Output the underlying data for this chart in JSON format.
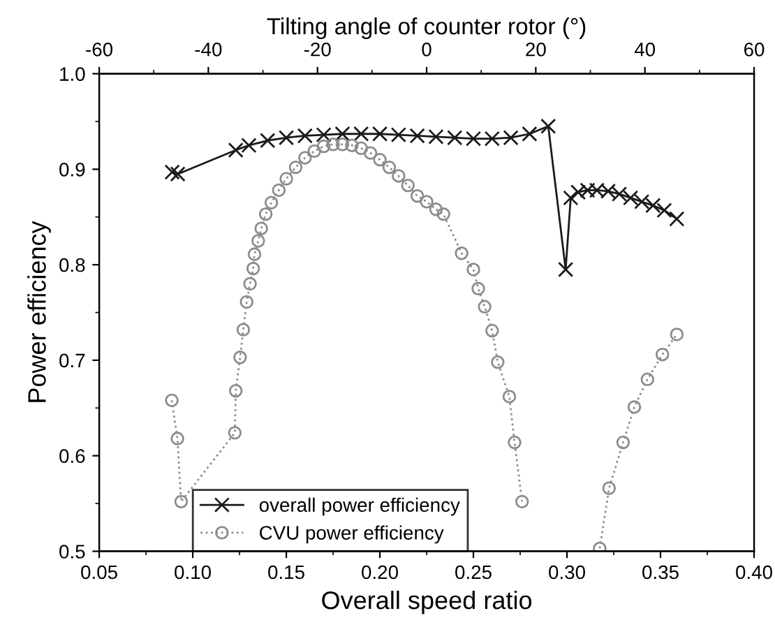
{
  "chart_data": {
    "type": "line",
    "xlabel": "Overall speed ratio",
    "ylabel": "Power efficiency",
    "x2label": "Tilting angle of counter rotor (°)",
    "xlim": [
      0.05,
      0.4
    ],
    "xticks": [
      {
        "value": 0.05,
        "label": "0.05"
      },
      {
        "value": 0.1,
        "label": "0.10"
      },
      {
        "value": 0.15,
        "label": "0.15"
      },
      {
        "value": 0.2,
        "label": "0.20"
      },
      {
        "value": 0.25,
        "label": "0.25"
      },
      {
        "value": 0.3,
        "label": "0.30"
      },
      {
        "value": 0.35,
        "label": "0.35"
      },
      {
        "value": 0.4,
        "label": "0.40"
      }
    ],
    "ylim": [
      0.5,
      1.0
    ],
    "yticks": [
      0.5,
      0.6,
      0.7,
      0.8,
      0.9,
      {
        "value": 1.0,
        "label": "1.0"
      }
    ],
    "x2lim": [
      -60,
      60
    ],
    "x2ticks": [
      -60,
      -40,
      -20,
      0,
      20,
      40,
      60
    ],
    "grid": false,
    "legend": "bottom left",
    "series": [
      {
        "name": "overall power efficiency",
        "color": "#1a1a1a",
        "marker": "cross",
        "line_style": "solid",
        "x": [
          0.089,
          0.092,
          0.123,
          0.13,
          0.14,
          0.15,
          0.16,
          0.17,
          0.18,
          0.19,
          0.2,
          0.21,
          0.22,
          0.23,
          0.24,
          0.25,
          0.26,
          0.27,
          0.28,
          0.29,
          0.2993,
          0.302,
          0.306,
          0.311,
          0.316,
          0.322,
          0.328,
          0.334,
          0.34,
          0.346,
          0.352,
          0.3587
        ],
        "values": [
          0.897,
          0.895,
          0.92,
          0.925,
          0.93,
          0.933,
          0.935,
          0.936,
          0.937,
          0.937,
          0.937,
          0.936,
          0.935,
          0.934,
          0.933,
          0.932,
          0.932,
          0.933,
          0.937,
          0.945,
          0.795,
          0.87,
          0.876,
          0.878,
          0.878,
          0.877,
          0.874,
          0.87,
          0.866,
          0.862,
          0.857,
          0.848
        ]
      },
      {
        "name": "CVU power efficiency",
        "color": "#8c8c8c",
        "marker": "circle",
        "line_style": "dotted",
        "x": [
          0.0888,
          0.0918,
          0.0938,
          0.1225,
          0.123,
          0.1253,
          0.127,
          0.1288,
          0.1306,
          0.1323,
          0.133,
          0.135,
          0.1366,
          0.139,
          0.142,
          0.146,
          0.15,
          0.155,
          0.16,
          0.165,
          0.17,
          0.175,
          0.18,
          0.185,
          0.19,
          0.195,
          0.2,
          0.205,
          0.21,
          0.215,
          0.22,
          0.225,
          0.23,
          0.234,
          0.2437,
          0.25,
          0.2526,
          0.256,
          0.26,
          0.263,
          0.2692,
          0.272,
          0.276,
          null,
          0.3175,
          0.3225,
          0.33,
          0.336,
          0.343,
          0.351,
          0.3587
        ],
        "values": [
          0.658,
          0.618,
          0.552,
          0.624,
          0.668,
          0.703,
          0.732,
          0.761,
          0.78,
          0.796,
          0.811,
          0.825,
          0.838,
          0.853,
          0.865,
          0.878,
          0.89,
          0.902,
          0.912,
          0.919,
          0.924,
          0.926,
          0.926,
          0.925,
          0.922,
          0.917,
          0.91,
          0.902,
          0.893,
          0.883,
          0.872,
          0.866,
          0.858,
          0.853,
          0.812,
          0.795,
          0.775,
          0.756,
          0.731,
          0.698,
          0.662,
          0.614,
          0.552,
          null,
          0.503,
          0.566,
          0.614,
          0.651,
          0.68,
          0.706,
          0.727
        ]
      }
    ]
  }
}
